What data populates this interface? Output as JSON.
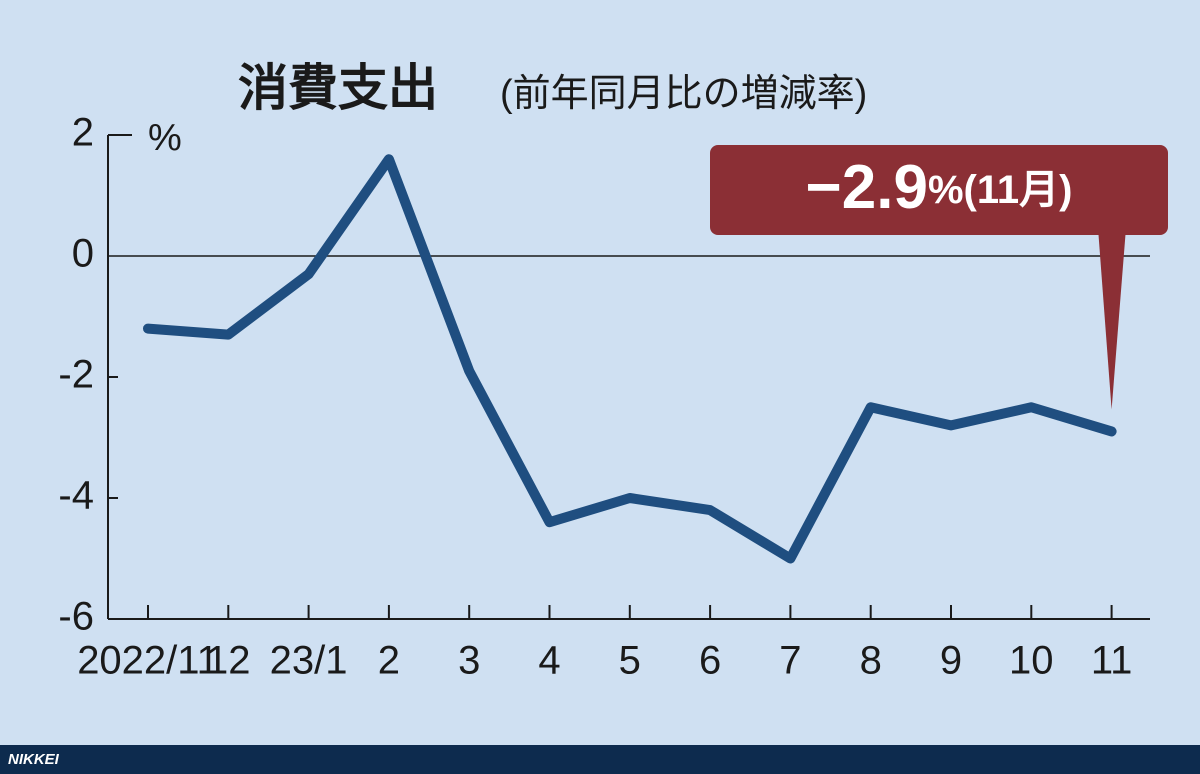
{
  "chart_data": {
    "type": "line",
    "title": "消費支出",
    "subtitle": "(前年同月比の増減率)",
    "ylabel": "%",
    "categories": [
      "2022/11",
      "12",
      "23/1",
      "2",
      "3",
      "4",
      "5",
      "6",
      "7",
      "8",
      "9",
      "10",
      "11"
    ],
    "series": [
      {
        "name": "消費支出",
        "color": "#1f4e80",
        "values": [
          -1.2,
          -1.3,
          -0.3,
          1.6,
          -1.9,
          -4.4,
          -4.0,
          -4.2,
          -5.0,
          -2.5,
          -2.8,
          -2.5,
          -2.9
        ]
      }
    ],
    "ylim": [
      -6,
      2
    ],
    "yticks": [
      2,
      0,
      -2,
      -4,
      -6
    ],
    "annotation": {
      "value": "−2.9",
      "unit": "%(11月)",
      "color": "#8b2f35"
    },
    "source": "NIKKEI"
  }
}
